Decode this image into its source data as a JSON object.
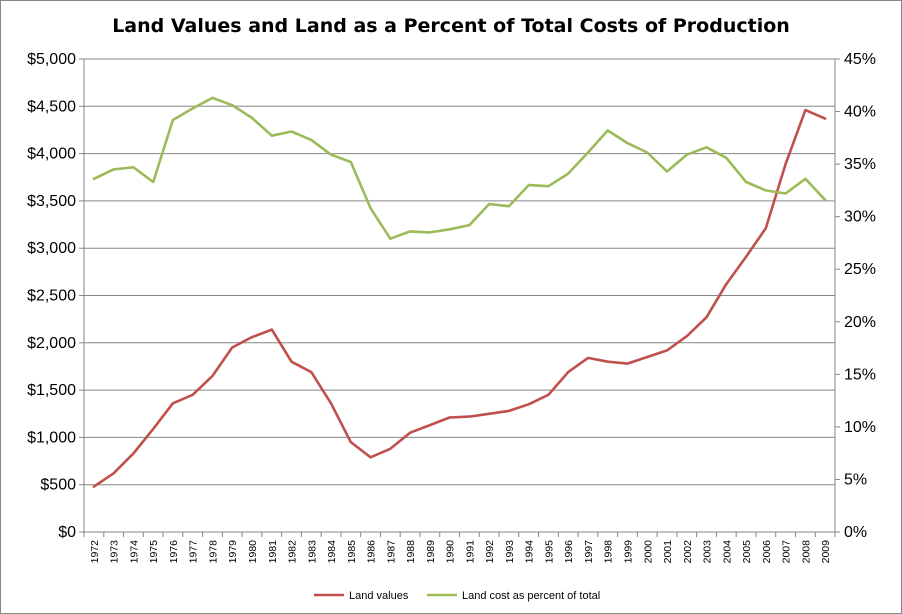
{
  "chart_data": {
    "type": "line",
    "title": "Land Values and Land as a Percent of Total Costs of Production",
    "xlabel": "",
    "ylabel": "",
    "x": [
      "1972",
      "1973",
      "1974",
      "1975",
      "1976",
      "1977",
      "1978",
      "1979",
      "1980",
      "1981",
      "1982",
      "1983",
      "1984",
      "1985",
      "1986",
      "1987",
      "1988",
      "1989",
      "1990",
      "1991",
      "1992",
      "1993",
      "1994",
      "1995",
      "1996",
      "1997",
      "1998",
      "1999",
      "2000",
      "2001",
      "2002",
      "2003",
      "2004",
      "2005",
      "2006",
      "2007",
      "2008",
      "2009"
    ],
    "y_left": {
      "min": 0,
      "max": 5000,
      "step": 500,
      "tick_labels": [
        "$0",
        "$500",
        "$1,000",
        "$1,500",
        "$2,000",
        "$2,500",
        "$3,000",
        "$3,500",
        "$4,000",
        "$4,500",
        "$5,000"
      ]
    },
    "y_right": {
      "min": 0,
      "max": 45,
      "step": 5,
      "tick_labels": [
        "0%",
        "5%",
        "10%",
        "15%",
        "20%",
        "25%",
        "30%",
        "35%",
        "40%",
        "45%"
      ]
    },
    "grid": "horizontal",
    "legend_position": "bottom",
    "series": [
      {
        "name": "Land values",
        "axis": "left",
        "color": "#c0504d",
        "values": [
          480,
          620,
          830,
          1090,
          1360,
          1450,
          1650,
          1950,
          2060,
          2140,
          1800,
          1690,
          1360,
          950,
          790,
          880,
          1050,
          1130,
          1210,
          1220,
          1250,
          1280,
          1350,
          1450,
          1690,
          1840,
          1800,
          1780,
          1850,
          1920,
          2070,
          2270,
          2620,
          2910,
          3210,
          3890,
          4460,
          4370
        ]
      },
      {
        "name": "Land cost as percent of total",
        "axis": "right",
        "color": "#9bbb59",
        "values": [
          33.6,
          34.5,
          34.7,
          33.3,
          39.2,
          40.3,
          41.3,
          40.6,
          39.4,
          37.7,
          38.1,
          37.3,
          35.9,
          35.2,
          30.8,
          27.9,
          28.6,
          28.5,
          28.8,
          29.2,
          31.2,
          31.0,
          33.0,
          32.9,
          34.1,
          36.1,
          38.2,
          37.0,
          36.1,
          34.3,
          35.9,
          36.6,
          35.6,
          33.3,
          32.5,
          32.2,
          33.6,
          31.6
        ]
      }
    ]
  }
}
